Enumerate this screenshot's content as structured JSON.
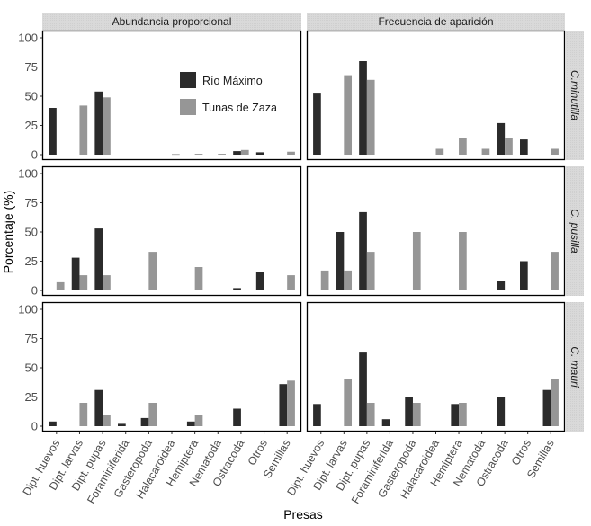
{
  "chart_data": {
    "type": "bar",
    "layout": "faceted-grid",
    "xlabel": "Presas",
    "ylabel": "Porcentaje (%)",
    "ylim": [
      0,
      100
    ],
    "yticks": [
      "0",
      "25",
      "50",
      "75",
      "100"
    ],
    "ytick_values": [
      0,
      25,
      50,
      75,
      100
    ],
    "grid": false,
    "categories": [
      "Dipt. huevos",
      "Dipt. larvas",
      "Dipt. pupas",
      "Foraminiferida",
      "Gasteropoda",
      "Halacaroidea",
      "Hemiptera",
      "Nematoda",
      "Ostracoda",
      "Otros",
      "Semillas"
    ],
    "legend": {
      "placement": "inside top-left panel, right side",
      "entries": [
        {
          "name": "Río Máximo",
          "color": "#2b2b2b"
        },
        {
          "name": "Tunas de Zaza",
          "color": "#969696"
        }
      ]
    },
    "column_facets": [
      "Abundancia proporcional",
      "Frecuencia de aparición"
    ],
    "row_facets": [
      "C.minutilla",
      "C. pusilla",
      "C. mauri"
    ],
    "panels": [
      {
        "row": "C.minutilla",
        "column": "Abundancia proporcional",
        "series": [
          {
            "name": "Río Máximo",
            "values": [
              40,
              0,
              54,
              0,
              0,
              0,
              0,
              0,
              3,
              2,
              0
            ]
          },
          {
            "name": "Tunas de Zaza",
            "values": [
              0,
              42,
              49,
              0,
              0,
              0.5,
              0.7,
              0.7,
              4,
              0,
              2.5
            ]
          }
        ]
      },
      {
        "row": "C.minutilla",
        "column": "Frecuencia de aparición",
        "series": [
          {
            "name": "Río Máximo",
            "values": [
              53,
              0,
              80,
              0,
              0,
              0,
              0,
              0,
              27,
              13,
              0
            ]
          },
          {
            "name": "Tunas de Zaza",
            "values": [
              0,
              68,
              64,
              0,
              0,
              5,
              14,
              5,
              14,
              0,
              5
            ]
          }
        ]
      },
      {
        "row": "C. pusilla",
        "column": "Abundancia proporcional",
        "series": [
          {
            "name": "Río Máximo",
            "values": [
              0,
              28,
              53,
              0,
              0,
              0,
              0,
              0,
              2,
              16,
              0
            ]
          },
          {
            "name": "Tunas de Zaza",
            "values": [
              7,
              13,
              13,
              0,
              33,
              0,
              20,
              0,
              0,
              0,
              13
            ]
          }
        ]
      },
      {
        "row": "C. pusilla",
        "column": "Frecuencia de aparición",
        "series": [
          {
            "name": "Río Máximo",
            "values": [
              0,
              50,
              67,
              0,
              0,
              0,
              0,
              0,
              8,
              25,
              0
            ]
          },
          {
            "name": "Tunas de Zaza",
            "values": [
              17,
              17,
              33,
              0,
              50,
              0,
              50,
              0,
              0,
              0,
              33
            ]
          }
        ]
      },
      {
        "row": "C. mauri",
        "column": "Abundancia proporcional",
        "series": [
          {
            "name": "Río Máximo",
            "values": [
              4,
              0,
              31,
              2,
              7,
              0,
              4,
              0,
              15,
              0,
              36
            ]
          },
          {
            "name": "Tunas de Zaza",
            "values": [
              0,
              20,
              10,
              0,
              20,
              0,
              10,
              0,
              0,
              0,
              39
            ]
          }
        ]
      },
      {
        "row": "C. mauri",
        "column": "Frecuencia de aparición",
        "series": [
          {
            "name": "Río Máximo",
            "values": [
              19,
              0,
              63,
              6,
              25,
              0,
              19,
              0,
              25,
              0,
              31
            ]
          },
          {
            "name": "Tunas de Zaza",
            "values": [
              0,
              40,
              20,
              0,
              20,
              0,
              20,
              0,
              0,
              0,
              40
            ]
          }
        ]
      }
    ]
  }
}
